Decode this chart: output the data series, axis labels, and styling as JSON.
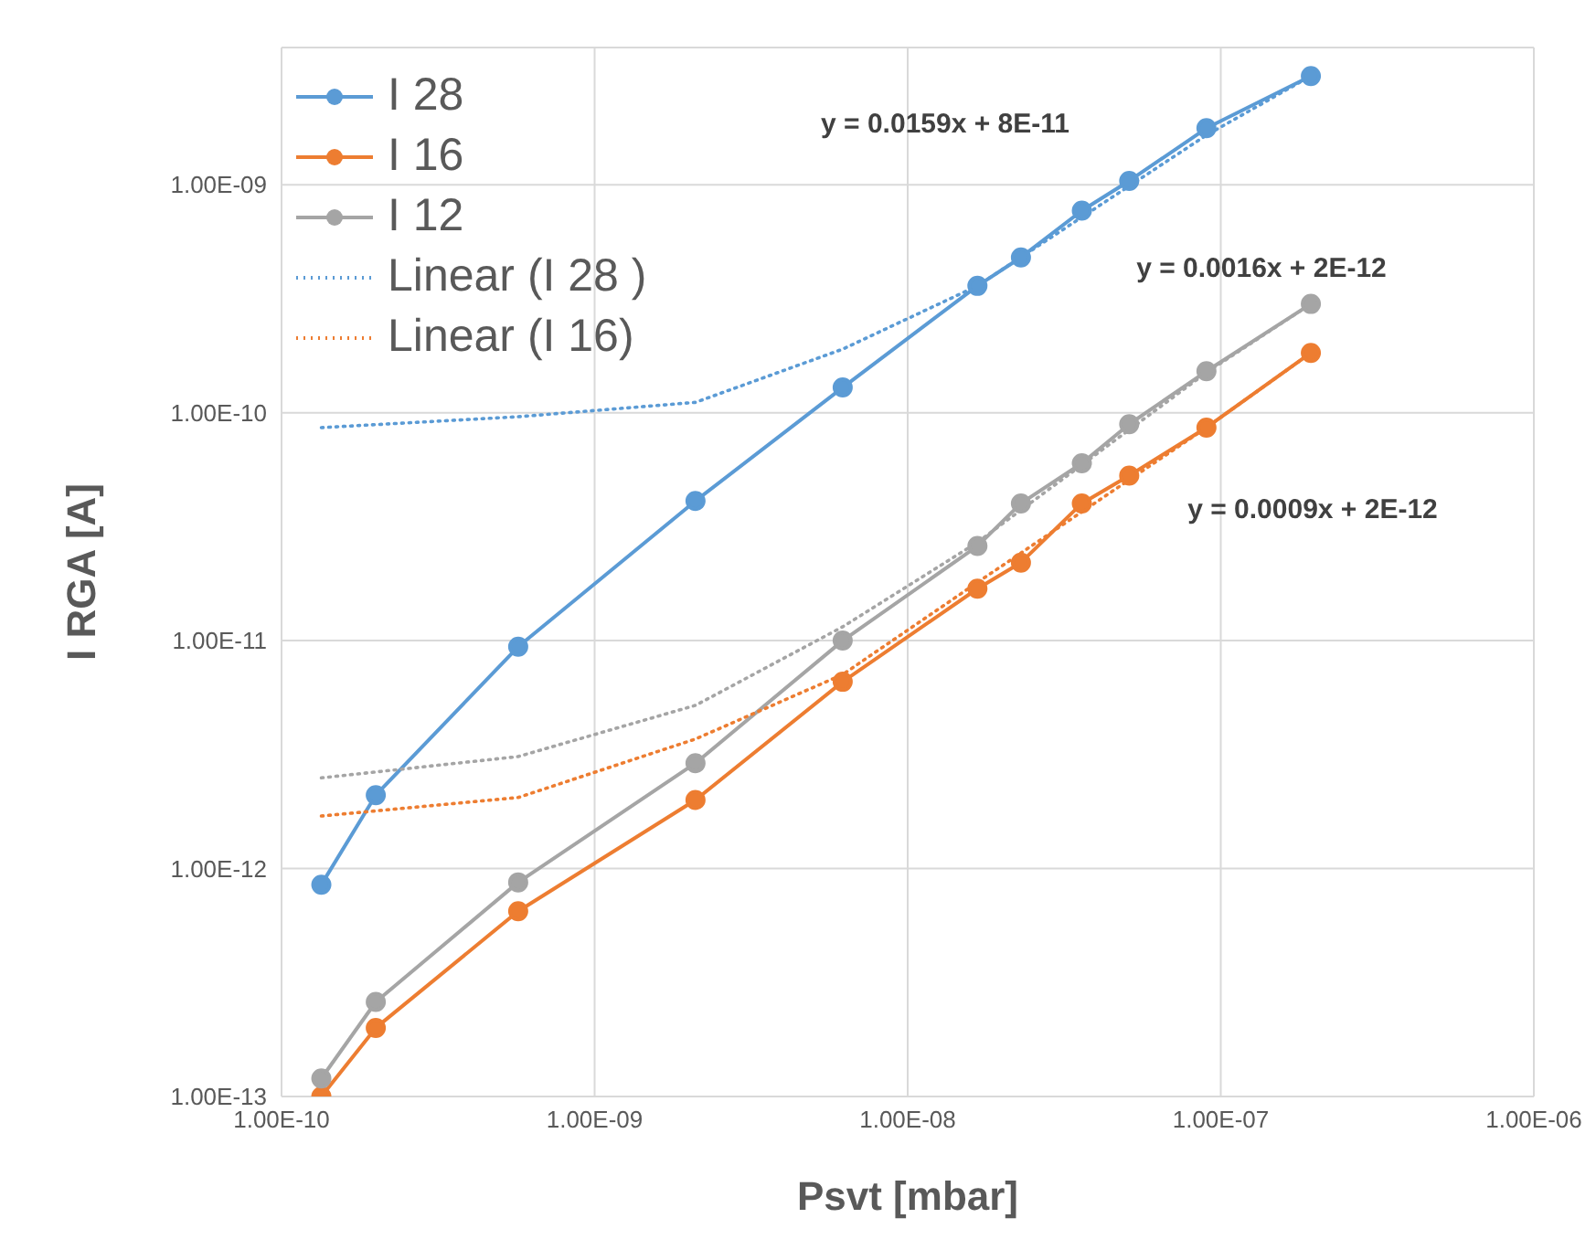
{
  "chart_data": {
    "type": "line",
    "xlabel": "Psvt [mbar]",
    "ylabel": "I RGA [A]",
    "log": "xy",
    "grid": true,
    "legend": "top left",
    "xlim": [
      1e-10,
      1e-06
    ],
    "ylim": [
      1e-13,
      4e-09
    ],
    "xticks": [
      {
        "value": 1e-10,
        "label": "1.00E-10"
      },
      {
        "value": 1e-09,
        "label": "1.00E-09"
      },
      {
        "value": 1e-08,
        "label": "1.00E-08"
      },
      {
        "value": 1e-07,
        "label": "1.00E-07"
      },
      {
        "value": 1e-06,
        "label": "1.00E-06"
      }
    ],
    "yticks": [
      {
        "value": 1e-13,
        "label": "1.00E-13"
      },
      {
        "value": 1e-12,
        "label": "1.00E-12"
      },
      {
        "value": 1e-11,
        "label": "1.00E-11"
      },
      {
        "value": 1e-10,
        "label": "1.00E-10"
      },
      {
        "value": 1e-09,
        "label": "1.00E-09"
      }
    ],
    "x": [
      1.34e-10,
      2e-10,
      5.7e-10,
      2.1e-09,
      6.2e-09,
      1.67e-08,
      2.3e-08,
      3.6e-08,
      5.1e-08,
      9e-08,
      1.94e-07
    ],
    "series": [
      {
        "name": "I 28",
        "color": "#5b9bd5",
        "marker": "circle",
        "line_style": "solid",
        "values": [
          8.5e-13,
          2.1e-12,
          9.4e-12,
          4.1e-11,
          1.29e-10,
          3.6e-10,
          4.8e-10,
          7.7e-10,
          1.04e-09,
          1.77e-09,
          3e-09
        ]
      },
      {
        "name": "I 16",
        "color": "#ed7d31",
        "marker": "circle",
        "line_style": "solid",
        "values": [
          1e-13,
          2e-13,
          6.5e-13,
          2e-12,
          6.6e-12,
          1.69e-11,
          2.2e-11,
          4e-11,
          5.3e-11,
          8.6e-11,
          1.83e-10
        ]
      },
      {
        "name": "I 12",
        "color": "#a5a5a5",
        "marker": "circle",
        "line_style": "solid",
        "values": [
          1.2e-13,
          2.6e-13,
          8.7e-13,
          2.9e-12,
          1e-11,
          2.6e-11,
          4e-11,
          6e-11,
          8.9e-11,
          1.52e-10,
          3e-10
        ]
      },
      {
        "name": "Linear (I 28 )",
        "color": "#5b9bd5",
        "marker": "none",
        "line_style": "dotted",
        "x": [
          1.34e-10,
          5.7e-10,
          2.1e-09,
          6.2e-09,
          1.67e-08,
          9e-08,
          1.94e-07
        ],
        "values": [
          8.6e-11,
          9.6e-11,
          1.11e-10,
          1.9e-10,
          3.6e-10,
          1.65e-09,
          3e-09
        ]
      },
      {
        "name": "Linear (I 16)",
        "color": "#ed7d31",
        "marker": "none",
        "line_style": "dotted",
        "x": [
          1.34e-10,
          5.7e-10,
          2.1e-09,
          6.2e-09,
          1.67e-08,
          9e-08,
          1.94e-07
        ],
        "values": [
          1.7e-12,
          2.05e-12,
          3.7e-12,
          7.1e-12,
          1.8e-11,
          8.6e-11,
          1.83e-10
        ]
      },
      {
        "color": "#a5a5a5",
        "marker": "none",
        "line_style": "dotted",
        "x": [
          1.34e-10,
          5.7e-10,
          2.1e-09,
          6.2e-09,
          1.67e-08,
          9e-08,
          1.94e-07
        ],
        "values": [
          2.5e-12,
          3.1e-12,
          5.2e-12,
          1.15e-11,
          2.7e-11,
          1.5e-10,
          3e-10
        ]
      }
    ],
    "annotations": [
      "y = 0.0159x + 8E-11",
      "y = 0.0016x + 2E-12",
      "y = 0.0009x + 2E-12"
    ]
  }
}
